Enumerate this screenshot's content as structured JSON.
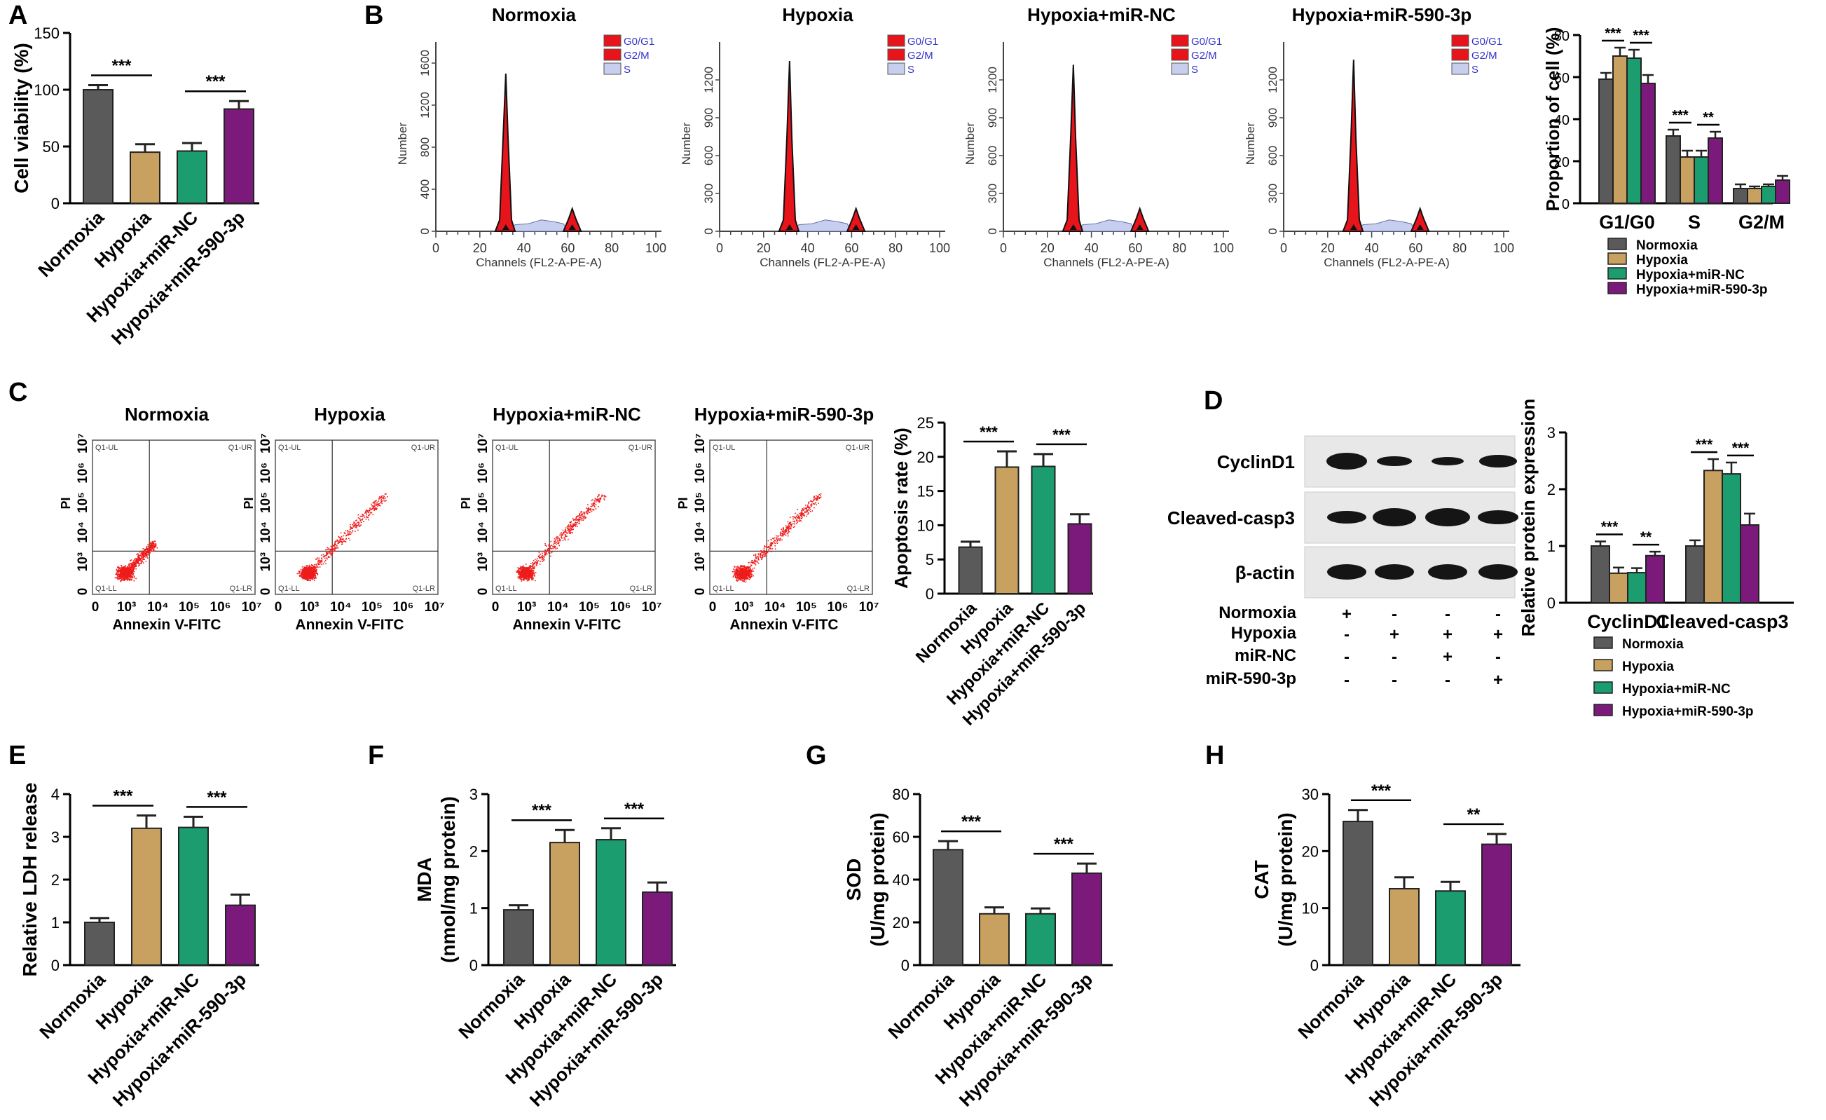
{
  "colors": {
    "normoxia": "#5a5a5a",
    "hypoxia": "#c8a060",
    "nc": "#1b9d70",
    "mir": "#7c1a7c",
    "peak": "#e8141b",
    "dot": "#ee1c1c",
    "sfill": "#c8cfee",
    "legendText": "#3333cc"
  },
  "groups": [
    "Normoxia",
    "Hypoxia",
    "Hypoxia+miR-NC",
    "Hypoxia+miR-590-3p"
  ],
  "panels": {
    "A": "A",
    "B": "B",
    "C": "C",
    "D": "D",
    "E": "E",
    "F": "F",
    "G": "G",
    "H": "H"
  },
  "chart_data": [
    {
      "id": "A",
      "type": "bar",
      "ylabel": "Cell viability (%)",
      "categories": [
        "Normoxia",
        "Hypoxia",
        "Hypoxia+miR-NC",
        "Hypoxia+miR-590-3p"
      ],
      "values": [
        100,
        45,
        46,
        83
      ],
      "errors": [
        4,
        7,
        7,
        7
      ],
      "ylim": [
        0,
        150
      ],
      "yticks": [
        0,
        50,
        100,
        150
      ],
      "significance": [
        {
          "from": 0,
          "to": 1,
          "label": "***"
        },
        {
          "from": 2,
          "to": 3,
          "label": "***"
        }
      ]
    },
    {
      "id": "B-hist",
      "type": "histogram",
      "xlabel": "Channels (FL2-A-PE-A)",
      "ylabel": "Number",
      "xticks": [
        0,
        20,
        40,
        60,
        80,
        100
      ],
      "legend": [
        "G0/G1",
        "G2/M",
        "S"
      ],
      "panels": [
        {
          "title": "Normoxia",
          "ymax": 1800,
          "yticks": [
            0,
            400,
            800,
            1200,
            1600
          ],
          "peak": 1500
        },
        {
          "title": "Hypoxia",
          "ymax": 1500,
          "yticks": [
            0,
            300,
            600,
            900,
            1200
          ],
          "peak": 1350
        },
        {
          "title": "Hypoxia+miR-NC",
          "ymax": 1500,
          "yticks": [
            0,
            300,
            600,
            900,
            1200
          ],
          "peak": 1320
        },
        {
          "title": "Hypoxia+miR-590-3p",
          "ymax": 1500,
          "yticks": [
            0,
            300,
            600,
            900,
            1200
          ],
          "peak": 1360
        }
      ]
    },
    {
      "id": "B-bar",
      "type": "bar",
      "ylabel": "Proportion of cell (%)",
      "categories": [
        "G1/G0",
        "S",
        "G2/M"
      ],
      "series": [
        {
          "name": "Normoxia",
          "values": [
            59,
            32,
            7
          ],
          "errors": [
            3,
            3,
            2
          ]
        },
        {
          "name": "Hypoxia",
          "values": [
            70,
            22,
            7
          ],
          "errors": [
            4,
            3,
            1
          ]
        },
        {
          "name": "Hypoxia+miR-NC",
          "values": [
            69,
            22,
            8
          ],
          "errors": [
            4,
            3,
            1
          ]
        },
        {
          "name": "Hypoxia+miR-590-3p",
          "values": [
            57,
            31,
            11
          ],
          "errors": [
            4,
            3,
            2
          ]
        }
      ],
      "ylim": [
        0,
        80
      ],
      "yticks": [
        0,
        20,
        40,
        60,
        80
      ],
      "significance": [
        {
          "cat": 0,
          "from": 0,
          "to": 1,
          "label": "***"
        },
        {
          "cat": 0,
          "from": 2,
          "to": 3,
          "label": "***"
        },
        {
          "cat": 1,
          "from": 0,
          "to": 1,
          "label": "***"
        },
        {
          "cat": 1,
          "from": 2,
          "to": 3,
          "label": "**"
        }
      ]
    },
    {
      "id": "C-flow",
      "type": "scatter",
      "xlabel": "Annexin V-FITC",
      "ylabel": "PI",
      "ticks": [
        "0",
        "10³",
        "10⁴",
        "10⁵",
        "10⁶",
        "10⁷"
      ],
      "quadrants": [
        "Q1-UL",
        "Q1-UR",
        "Q1-LL",
        "Q1-LR"
      ],
      "panels": [
        {
          "title": "Normoxia"
        },
        {
          "title": "Hypoxia"
        },
        {
          "title": "Hypoxia+miR-NC"
        },
        {
          "title": "Hypoxia+miR-590-3p"
        }
      ]
    },
    {
      "id": "C",
      "type": "bar",
      "ylabel": "Apoptosis rate (%)",
      "categories": [
        "Normoxia",
        "Hypoxia",
        "Hypoxia+miR-NC",
        "Hypoxia+miR-590-3p"
      ],
      "values": [
        6.8,
        18.5,
        18.6,
        10.2
      ],
      "errors": [
        0.8,
        2.3,
        1.8,
        1.4
      ],
      "ylim": [
        0,
        25
      ],
      "yticks": [
        0,
        5,
        10,
        15,
        20,
        25
      ],
      "significance": [
        {
          "from": 0,
          "to": 1,
          "label": "***"
        },
        {
          "from": 2,
          "to": 3,
          "label": "***"
        }
      ]
    },
    {
      "id": "D-blot",
      "type": "table",
      "bands": [
        "CyclinD1",
        "Cleaved-casp3",
        "β-actin"
      ],
      "conditions": [
        {
          "label": "Normoxia",
          "signs": [
            "+",
            "-",
            "-",
            "-"
          ]
        },
        {
          "label": "Hypoxia",
          "signs": [
            "-",
            "+",
            "+",
            "+"
          ]
        },
        {
          "label": "miR-NC",
          "signs": [
            "-",
            "-",
            "+",
            "-"
          ]
        },
        {
          "label": "miR-590-3p",
          "signs": [
            "-",
            "-",
            "-",
            "+"
          ]
        }
      ]
    },
    {
      "id": "D",
      "type": "bar",
      "ylabel": "Relative protein expression",
      "categories": [
        "CyclinD1",
        "Cleaved-casp3"
      ],
      "series": [
        {
          "name": "Normoxia",
          "values": [
            1.0,
            1.0
          ],
          "errors": [
            0.08,
            0.1
          ]
        },
        {
          "name": "Hypoxia",
          "values": [
            0.52,
            2.33
          ],
          "errors": [
            0.1,
            0.2
          ]
        },
        {
          "name": "Hypoxia+miR-NC",
          "values": [
            0.53,
            2.27
          ],
          "errors": [
            0.08,
            0.2
          ]
        },
        {
          "name": "Hypoxia+miR-590-3p",
          "values": [
            0.83,
            1.37
          ],
          "errors": [
            0.07,
            0.2
          ]
        }
      ],
      "ylim": [
        0,
        3
      ],
      "yticks": [
        0,
        1,
        2,
        3
      ],
      "significance": [
        {
          "cat": 0,
          "from": 0,
          "to": 1,
          "label": "***"
        },
        {
          "cat": 0,
          "from": 2,
          "to": 3,
          "label": "**"
        },
        {
          "cat": 1,
          "from": 0,
          "to": 1,
          "label": "***"
        },
        {
          "cat": 1,
          "from": 2,
          "to": 3,
          "label": "***"
        }
      ]
    },
    {
      "id": "E",
      "type": "bar",
      "ylabel": "Relative LDH release",
      "categories": [
        "Normoxia",
        "Hypoxia",
        "Hypoxia+miR-NC",
        "Hypoxia+miR-590-3p"
      ],
      "values": [
        1.0,
        3.2,
        3.22,
        1.4
      ],
      "errors": [
        0.1,
        0.3,
        0.25,
        0.25
      ],
      "ylim": [
        0,
        4
      ],
      "yticks": [
        0,
        1,
        2,
        3,
        4
      ],
      "significance": [
        {
          "from": 0,
          "to": 1,
          "label": "***"
        },
        {
          "from": 2,
          "to": 3,
          "label": "***"
        }
      ]
    },
    {
      "id": "F",
      "type": "bar",
      "ylabel": "MDA",
      "ylabel2": "(nmol/mg protein)",
      "categories": [
        "Normoxia",
        "Hypoxia",
        "Hypoxia+miR-NC",
        "Hypoxia+miR-590-3p"
      ],
      "values": [
        0.97,
        2.15,
        2.2,
        1.28
      ],
      "errors": [
        0.08,
        0.22,
        0.2,
        0.17
      ],
      "ylim": [
        0,
        3
      ],
      "yticks": [
        0,
        1,
        2,
        3
      ],
      "significance": [
        {
          "from": 0,
          "to": 1,
          "label": "***"
        },
        {
          "from": 2,
          "to": 3,
          "label": "***"
        }
      ]
    },
    {
      "id": "G",
      "type": "bar",
      "ylabel": "SOD",
      "ylabel2": "(U/mg protein)",
      "categories": [
        "Normoxia",
        "Hypoxia",
        "Hypoxia+miR-NC",
        "Hypoxia+miR-590-3p"
      ],
      "values": [
        54,
        24,
        24,
        43
      ],
      "errors": [
        4,
        3,
        2.5,
        4.5
      ],
      "ylim": [
        0,
        80
      ],
      "yticks": [
        0,
        20,
        40,
        60,
        80
      ],
      "significance": [
        {
          "from": 0,
          "to": 1,
          "label": "***"
        },
        {
          "from": 2,
          "to": 3,
          "label": "***"
        }
      ]
    },
    {
      "id": "H",
      "type": "bar",
      "ylabel": "CAT",
      "ylabel2": "(U/mg protein)",
      "categories": [
        "Normoxia",
        "Hypoxia",
        "Hypoxia+miR-NC",
        "Hypoxia+miR-590-3p"
      ],
      "values": [
        25.2,
        13.4,
        13.0,
        21.2
      ],
      "errors": [
        2,
        2,
        1.6,
        1.8
      ],
      "ylim": [
        0,
        30
      ],
      "yticks": [
        0,
        10,
        20,
        30
      ],
      "significance": [
        {
          "from": 0,
          "to": 1,
          "label": "***"
        },
        {
          "from": 2,
          "to": 3,
          "label": "**"
        }
      ]
    }
  ]
}
